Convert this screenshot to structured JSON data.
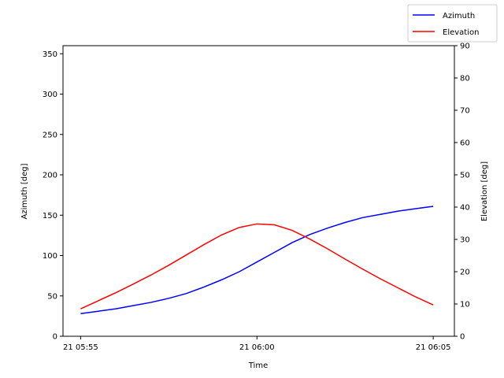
{
  "chart_data": {
    "type": "line",
    "xlabel": "Time",
    "ylabel_left": "Azimuth [deg]",
    "ylabel_right": "Elevation [deg]",
    "x_tick_labels": [
      "21 05:55",
      "21 06:00",
      "21 06:05"
    ],
    "x_tick_minutes": [
      0,
      5,
      10
    ],
    "xlim": [
      -0.5,
      10.6
    ],
    "ylim_left": [
      0,
      360
    ],
    "yticks_left": [
      0,
      50,
      100,
      150,
      200,
      250,
      300,
      350
    ],
    "ylim_right": [
      0,
      90
    ],
    "yticks_right": [
      0,
      10,
      20,
      30,
      40,
      50,
      60,
      70,
      80,
      90
    ],
    "x": [
      0,
      0.5,
      1,
      1.5,
      2,
      2.5,
      3,
      3.5,
      4,
      4.5,
      5,
      5.5,
      6,
      6.5,
      7,
      7.5,
      8,
      8.5,
      9,
      9.5,
      10
    ],
    "series": [
      {
        "name": "Azimuth",
        "axis": "left",
        "color": "#0000ff",
        "values": [
          28,
          31,
          34,
          38,
          42,
          47,
          53,
          61,
          70,
          80,
          92,
          104,
          116,
          126,
          134,
          141,
          147,
          151,
          155,
          158,
          161
        ]
      },
      {
        "name": "Elevation",
        "axis": "right",
        "color": "#ff0000",
        "values": [
          8.5,
          11,
          13.5,
          16.2,
          19,
          22,
          25.2,
          28.4,
          31.4,
          33.7,
          34.8,
          34.5,
          32.8,
          30.1,
          27.1,
          23.9,
          20.8,
          17.8,
          15,
          12.2,
          9.7
        ]
      }
    ],
    "legend_position": "top-right",
    "grid": false
  }
}
